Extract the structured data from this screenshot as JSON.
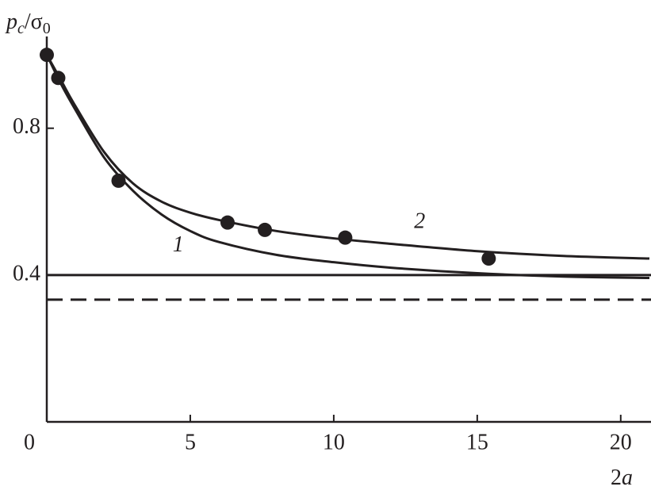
{
  "chart_data": {
    "type": "line",
    "y_label": [
      "p",
      "c",
      "/σ",
      "0"
    ],
    "x_label": [
      "2",
      "a"
    ],
    "xlim": [
      0,
      21
    ],
    "ylim": [
      0,
      1.05
    ],
    "xticks": [
      0,
      5,
      10,
      15,
      20
    ],
    "yticks": [
      0.4,
      0.8
    ],
    "hlines": [
      {
        "value": 0.4,
        "style": "solid"
      },
      {
        "value": 0.333,
        "style": "dashed"
      }
    ],
    "series": [
      {
        "name": "1",
        "color": "#231f20",
        "x": [
          0,
          0.5,
          1,
          2,
          3,
          4,
          5,
          6,
          8,
          10,
          12,
          15,
          18,
          21
        ],
        "values": [
          1.0,
          0.92,
          0.85,
          0.72,
          0.63,
          0.565,
          0.52,
          0.49,
          0.455,
          0.435,
          0.42,
          0.405,
          0.396,
          0.392
        ]
      },
      {
        "name": "2",
        "color": "#231f20",
        "x": [
          0,
          0.5,
          1,
          2,
          3,
          4,
          5,
          6,
          8,
          10,
          12,
          15,
          18,
          21
        ],
        "values": [
          1.0,
          0.93,
          0.86,
          0.735,
          0.65,
          0.6,
          0.57,
          0.55,
          0.52,
          0.5,
          0.485,
          0.465,
          0.452,
          0.445
        ]
      }
    ],
    "points": {
      "color": "#231f20",
      "x": [
        0,
        0.4,
        2.5,
        6.3,
        7.6,
        10.4,
        15.4
      ],
      "values": [
        1.0,
        0.937,
        0.657,
        0.543,
        0.523,
        0.502,
        0.445
      ]
    }
  }
}
